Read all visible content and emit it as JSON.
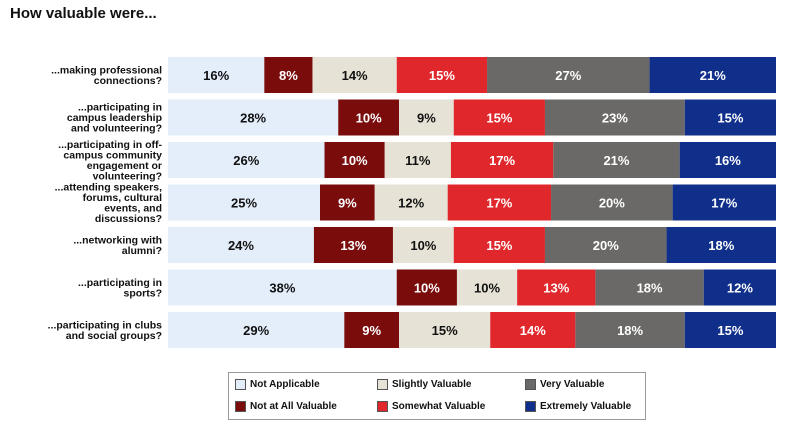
{
  "title": "How valuable were...",
  "chart_data": {
    "type": "bar",
    "stacked": true,
    "orientation": "horizontal",
    "categories": [
      "...making professional connections?",
      "...participating in campus leadership and volunteering?",
      "...participating in off-campus community engagement or volunteering?",
      "...attending speakers, forums, cultural events, and discussions?",
      "...networking with alumni?",
      "...participating in sports?",
      "...participating in clubs and social groups?"
    ],
    "category_lines": [
      [
        "...making professional",
        "connections?"
      ],
      [
        "...participating in",
        "campus leadership",
        "and volunteering?"
      ],
      [
        "...participating in off-",
        "campus community",
        "engagement or",
        "volunteering?"
      ],
      [
        "...attending speakers,",
        "forums, cultural",
        "events, and",
        "discussions?"
      ],
      [
        "...networking with",
        "alumni?"
      ],
      [
        "...participating in",
        "sports?"
      ],
      [
        "...participating in clubs",
        "and social groups?"
      ]
    ],
    "series": [
      {
        "name": "Not Applicable",
        "color": "#e4eefb",
        "label_color": "#111111",
        "values": [
          16,
          28,
          26,
          25,
          24,
          38,
          29
        ]
      },
      {
        "name": "Not at All Valuable",
        "color": "#7a0c0c",
        "label_color": "#ffffff",
        "values": [
          8,
          10,
          10,
          9,
          13,
          10,
          9
        ]
      },
      {
        "name": "Slightly Valuable",
        "color": "#e6e2d6",
        "label_color": "#111111",
        "values": [
          14,
          9,
          11,
          12,
          10,
          10,
          15
        ]
      },
      {
        "name": "Somewhat Valuable",
        "color": "#e0282c",
        "label_color": "#ffffff",
        "values": [
          15,
          15,
          17,
          17,
          15,
          13,
          14
        ]
      },
      {
        "name": "Very Valuable",
        "color": "#6a6967",
        "label_color": "#ffffff",
        "values": [
          27,
          23,
          21,
          20,
          20,
          18,
          18
        ]
      },
      {
        "name": "Extremely Valuable",
        "color": "#0f2f8a",
        "label_color": "#ffffff",
        "values": [
          21,
          15,
          16,
          17,
          18,
          12,
          15
        ]
      }
    ],
    "value_suffix": "%",
    "legend_position": "bottom",
    "grid": false
  }
}
